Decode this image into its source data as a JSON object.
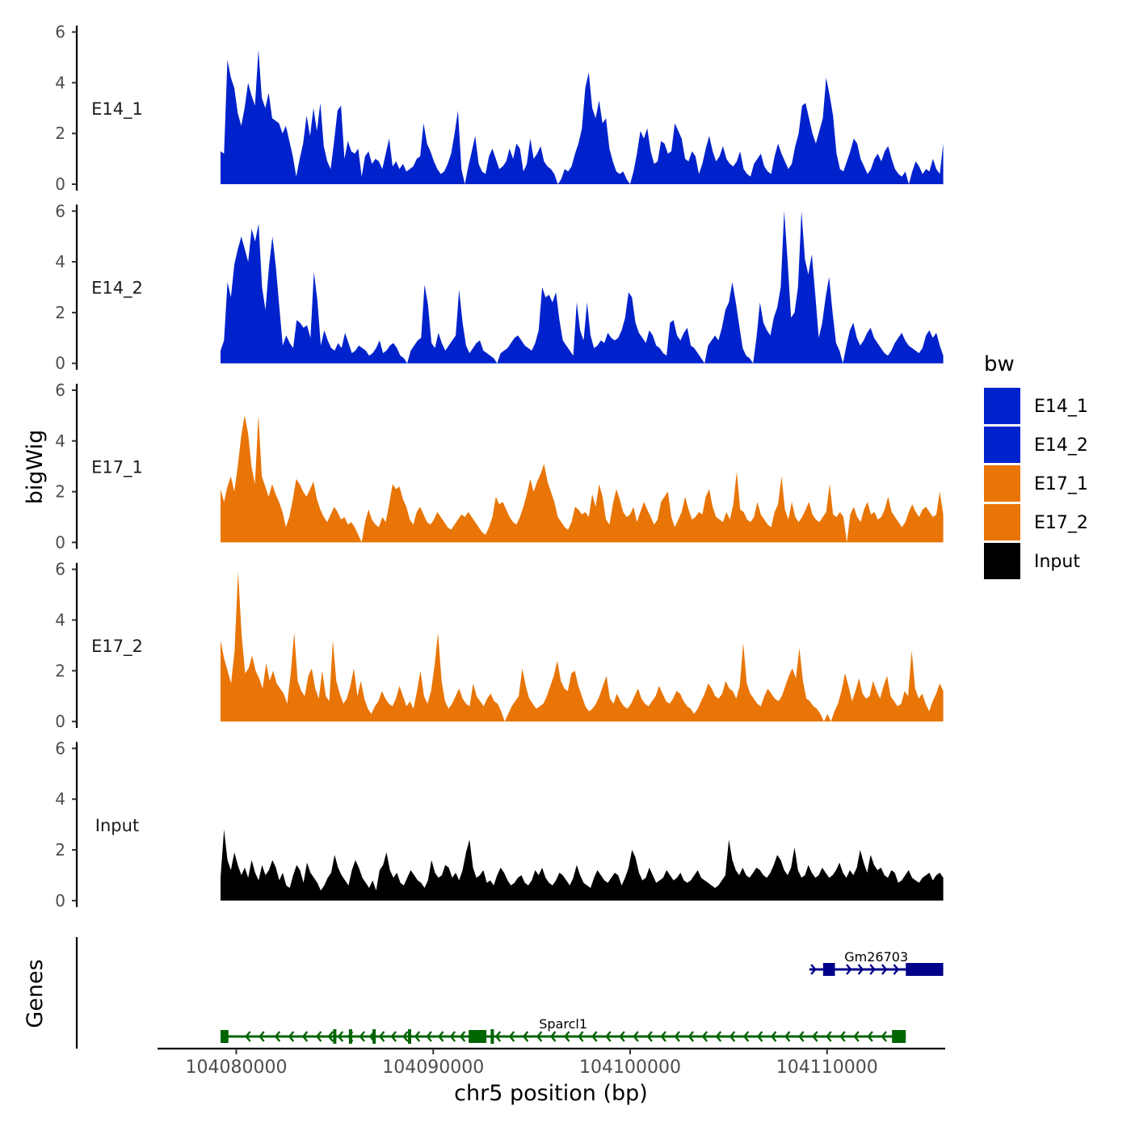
{
  "chart_data": {
    "type": "area",
    "chromosome": "chr5",
    "xlabel": "chr5 position (bp)",
    "ylabel": "bigWig",
    "genes_label": "Genes",
    "xlim": [
      104076000,
      104116000
    ],
    "x_ticks": [
      {
        "value": 104080000,
        "label": "104080000"
      },
      {
        "value": 104090000,
        "label": "104090000"
      },
      {
        "value": 104100000,
        "label": "104100000"
      },
      {
        "value": 104110000,
        "label": "104110000"
      }
    ],
    "ylim": [
      0,
      6
    ],
    "y_ticks": [
      {
        "value": 0,
        "label": "0"
      },
      {
        "value": 2,
        "label": "2"
      },
      {
        "value": 4,
        "label": "4"
      },
      {
        "value": 6,
        "label": "6"
      }
    ],
    "signal_range": [
      104079200,
      104115900
    ],
    "legend": {
      "title": "bw",
      "entries": [
        {
          "label": "E14_1",
          "color": "#0022CC"
        },
        {
          "label": "E14_2",
          "color": "#0022CC"
        },
        {
          "label": "E17_1",
          "color": "#E87506"
        },
        {
          "label": "E17_2",
          "color": "#E87506"
        },
        {
          "label": "Input",
          "color": "#000000"
        }
      ]
    },
    "series": [
      {
        "name": "E14_1",
        "color": "#0022CC",
        "values": [
          1.3,
          1.2,
          4.9,
          4.2,
          3.8,
          2.8,
          2.3,
          3.0,
          4.0,
          3.5,
          3.1,
          5.3,
          3.4,
          3.0,
          3.6,
          2.6,
          2.5,
          2.4,
          2.0,
          2.3,
          1.7,
          1.1,
          0.3,
          1.0,
          1.6,
          2.7,
          1.9,
          3.0,
          2.1,
          3.2,
          1.5,
          0.9,
          0.6,
          1.7,
          2.9,
          3.1,
          1.0,
          1.7,
          1.3,
          1.2,
          1.4,
          0.3,
          1.1,
          1.3,
          0.8,
          1.0,
          0.9,
          0.6,
          1.2,
          1.8,
          0.7,
          0.9,
          0.6,
          0.8,
          0.5,
          0.6,
          0.7,
          1.0,
          1.1,
          2.4,
          1.6,
          1.3,
          0.9,
          0.6,
          0.4,
          0.5,
          0.8,
          1.2,
          2.0,
          2.9,
          0.6,
          0.0,
          0.7,
          1.3,
          1.9,
          0.8,
          0.5,
          0.4,
          1.1,
          1.4,
          1.0,
          0.6,
          0.7,
          0.9,
          1.4,
          1.0,
          1.6,
          1.4,
          0.5,
          0.8,
          1.8,
          1.0,
          1.2,
          1.5,
          0.9,
          0.7,
          0.6,
          0.4,
          0.0,
          0.2,
          0.6,
          0.5,
          0.7,
          1.2,
          1.6,
          2.2,
          3.8,
          4.4,
          3.0,
          2.6,
          3.3,
          2.4,
          2.6,
          1.4,
          0.9,
          0.5,
          0.4,
          0.5,
          0.2,
          0.0,
          0.5,
          1.2,
          2.1,
          1.8,
          2.2,
          1.3,
          0.8,
          0.9,
          1.7,
          1.6,
          1.2,
          1.3,
          2.4,
          2.1,
          1.8,
          1.0,
          0.9,
          1.3,
          1.1,
          0.4,
          0.8,
          1.4,
          1.9,
          1.3,
          0.9,
          1.1,
          1.5,
          1.0,
          0.8,
          0.7,
          0.9,
          1.3,
          0.6,
          0.4,
          0.3,
          0.8,
          1.0,
          1.2,
          0.7,
          0.5,
          0.4,
          1.1,
          1.6,
          1.2,
          0.9,
          0.6,
          0.8,
          1.5,
          2.0,
          3.1,
          3.2,
          2.6,
          2.0,
          1.6,
          2.1,
          2.6,
          4.2,
          3.5,
          2.7,
          1.2,
          0.6,
          0.5,
          0.9,
          1.3,
          1.8,
          1.6,
          1.0,
          0.7,
          0.4,
          0.6,
          1.0,
          1.2,
          0.9,
          1.3,
          1.5,
          1.0,
          0.6,
          0.4,
          0.3,
          0.5,
          0.0,
          0.5,
          0.9,
          0.7,
          0.4,
          0.6,
          0.5,
          1.0,
          0.6,
          0.4,
          1.6
        ]
      },
      {
        "name": "E14_2",
        "color": "#0022CC",
        "values": [
          0.5,
          0.9,
          3.2,
          2.6,
          3.9,
          4.5,
          5.0,
          4.5,
          4.0,
          5.3,
          4.8,
          5.5,
          3.0,
          2.1,
          3.8,
          5.0,
          3.8,
          2.2,
          0.7,
          1.1,
          0.8,
          0.6,
          1.7,
          1.6,
          1.4,
          1.5,
          1.0,
          3.6,
          2.5,
          0.7,
          1.3,
          0.9,
          0.6,
          0.5,
          0.8,
          0.6,
          1.2,
          0.8,
          0.4,
          0.5,
          0.7,
          0.6,
          0.5,
          0.3,
          0.4,
          0.6,
          0.9,
          0.4,
          0.5,
          0.7,
          0.8,
          0.6,
          0.3,
          0.2,
          0.0,
          0.5,
          0.7,
          0.9,
          1.0,
          3.1,
          2.3,
          0.8,
          0.6,
          1.2,
          0.8,
          0.5,
          0.7,
          0.9,
          1.1,
          2.9,
          1.6,
          0.7,
          0.4,
          0.6,
          0.8,
          0.9,
          0.5,
          0.4,
          0.3,
          0.2,
          0.0,
          0.4,
          0.5,
          0.6,
          0.8,
          1.0,
          1.1,
          0.9,
          0.7,
          0.6,
          0.5,
          0.8,
          1.3,
          3.0,
          2.6,
          2.7,
          2.4,
          2.8,
          1.7,
          0.9,
          0.7,
          0.5,
          0.3,
          2.4,
          1.3,
          0.9,
          2.4,
          1.1,
          0.6,
          0.7,
          0.9,
          0.8,
          1.2,
          1.0,
          0.9,
          1.0,
          1.3,
          1.8,
          2.8,
          2.6,
          1.6,
          1.2,
          1.0,
          0.8,
          1.3,
          1.1,
          0.7,
          0.6,
          0.4,
          0.3,
          1.6,
          1.7,
          1.1,
          0.9,
          1.2,
          1.4,
          0.7,
          0.6,
          0.4,
          0.2,
          0.0,
          0.7,
          0.9,
          1.1,
          0.9,
          1.4,
          2.1,
          2.4,
          3.2,
          2.4,
          1.5,
          0.6,
          0.3,
          0.2,
          0.0,
          1.0,
          2.4,
          1.6,
          1.3,
          1.1,
          1.8,
          2.2,
          3.0,
          6.0,
          4.0,
          1.8,
          2.0,
          3.0,
          6.0,
          4.1,
          3.5,
          4.3,
          2.7,
          1.0,
          1.6,
          2.6,
          3.4,
          2.0,
          0.8,
          0.5,
          0.0,
          0.7,
          1.3,
          1.6,
          1.0,
          0.7,
          0.9,
          1.2,
          1.4,
          1.0,
          0.8,
          0.6,
          0.4,
          0.3,
          0.5,
          0.8,
          1.0,
          1.2,
          0.9,
          0.7,
          0.6,
          0.5,
          0.4,
          0.6,
          1.1,
          1.3,
          1.0,
          1.2,
          0.7,
          0.3
        ]
      },
      {
        "name": "E17_1",
        "color": "#E87506",
        "values": [
          2.1,
          1.6,
          2.2,
          2.6,
          2.0,
          3.0,
          4.2,
          5.0,
          4.3,
          3.0,
          2.3,
          5.0,
          2.6,
          2.2,
          1.8,
          2.3,
          1.9,
          1.6,
          1.2,
          0.6,
          1.0,
          1.7,
          2.5,
          2.3,
          2.0,
          1.8,
          2.1,
          2.4,
          1.7,
          1.3,
          1.0,
          0.8,
          1.1,
          1.4,
          1.2,
          0.9,
          1.0,
          0.7,
          0.8,
          0.6,
          0.3,
          0.0,
          0.8,
          1.3,
          0.9,
          0.7,
          0.6,
          1.0,
          0.8,
          1.5,
          2.3,
          2.1,
          2.2,
          1.7,
          1.4,
          0.9,
          0.7,
          1.2,
          1.4,
          1.1,
          0.8,
          0.7,
          0.9,
          1.2,
          1.0,
          0.8,
          0.6,
          0.5,
          0.7,
          0.9,
          1.1,
          1.0,
          1.2,
          1.0,
          0.8,
          0.6,
          0.4,
          0.3,
          0.6,
          1.0,
          1.8,
          1.5,
          1.6,
          1.3,
          1.0,
          0.8,
          0.7,
          1.0,
          1.4,
          1.9,
          2.5,
          2.0,
          2.4,
          2.7,
          3.1,
          2.4,
          2.0,
          1.6,
          1.0,
          0.8,
          0.6,
          0.5,
          0.8,
          1.4,
          1.3,
          1.1,
          1.2,
          1.0,
          1.9,
          1.4,
          2.3,
          1.8,
          0.9,
          0.7,
          1.5,
          2.1,
          1.7,
          1.2,
          1.0,
          1.1,
          1.4,
          0.8,
          1.2,
          1.6,
          1.3,
          1.0,
          0.7,
          0.9,
          1.6,
          1.8,
          2.0,
          1.0,
          0.6,
          0.9,
          1.2,
          1.8,
          1.3,
          0.9,
          1.0,
          1.2,
          1.1,
          1.8,
          2.1,
          1.4,
          1.0,
          0.9,
          0.8,
          1.2,
          0.9,
          1.5,
          2.8,
          1.3,
          1.2,
          0.9,
          0.8,
          1.0,
          1.6,
          1.1,
          0.9,
          0.7,
          0.6,
          1.2,
          1.5,
          2.6,
          1.3,
          0.9,
          1.6,
          1.0,
          0.8,
          1.0,
          1.3,
          1.6,
          1.1,
          0.9,
          0.8,
          1.0,
          1.2,
          2.3,
          1.1,
          1.0,
          1.2,
          1.0,
          0.0,
          1.1,
          1.4,
          1.0,
          0.8,
          1.3,
          1.6,
          1.1,
          1.2,
          0.9,
          1.0,
          1.3,
          1.8,
          1.2,
          1.0,
          0.8,
          0.6,
          0.8,
          1.2,
          1.5,
          1.2,
          1.0,
          1.3,
          1.4,
          1.2,
          1.0,
          1.1,
          2.0,
          1.1
        ]
      },
      {
        "name": "E17_2",
        "color": "#E87506",
        "values": [
          3.2,
          2.5,
          2.0,
          1.5,
          2.8,
          5.9,
          3.4,
          1.9,
          2.1,
          2.6,
          2.0,
          1.7,
          1.3,
          2.3,
          1.6,
          2.0,
          1.5,
          1.3,
          1.1,
          0.7,
          1.9,
          3.5,
          1.6,
          1.2,
          1.0,
          1.8,
          2.1,
          1.3,
          0.9,
          2.0,
          1.0,
          0.8,
          3.2,
          1.6,
          1.1,
          0.7,
          0.9,
          1.4,
          2.1,
          1.0,
          1.6,
          0.9,
          0.5,
          0.3,
          0.6,
          0.8,
          1.2,
          0.9,
          0.7,
          0.6,
          0.9,
          1.4,
          1.0,
          0.6,
          0.8,
          0.5,
          1.2,
          2.0,
          1.0,
          0.7,
          1.2,
          2.2,
          3.5,
          1.6,
          0.8,
          0.5,
          0.7,
          1.0,
          1.3,
          0.9,
          0.7,
          0.6,
          1.5,
          1.0,
          0.8,
          0.6,
          0.9,
          1.1,
          0.8,
          0.7,
          0.4,
          0.0,
          0.3,
          0.6,
          0.8,
          1.0,
          2.1,
          1.4,
          0.9,
          0.7,
          0.5,
          0.6,
          0.7,
          1.0,
          1.4,
          1.8,
          2.4,
          1.6,
          1.3,
          1.2,
          1.9,
          2.0,
          1.4,
          1.0,
          0.6,
          0.4,
          0.5,
          0.7,
          1.0,
          1.4,
          1.8,
          0.9,
          0.7,
          1.1,
          0.8,
          0.6,
          0.5,
          0.7,
          1.0,
          1.3,
          0.9,
          0.7,
          0.6,
          0.8,
          1.0,
          1.4,
          1.1,
          0.8,
          0.7,
          0.9,
          1.2,
          1.1,
          0.8,
          0.6,
          0.5,
          0.3,
          0.5,
          0.8,
          1.1,
          1.5,
          1.3,
          1.0,
          0.9,
          1.1,
          1.6,
          1.3,
          1.2,
          0.9,
          1.4,
          3.1,
          1.5,
          1.1,
          0.9,
          0.7,
          0.6,
          1.0,
          1.3,
          1.1,
          0.9,
          0.8,
          1.0,
          1.4,
          1.8,
          2.1,
          1.7,
          2.9,
          1.6,
          0.9,
          0.8,
          0.6,
          0.5,
          0.3,
          0.0,
          0.3,
          0.0,
          0.4,
          0.7,
          1.2,
          1.9,
          1.4,
          0.8,
          1.2,
          1.7,
          1.1,
          0.9,
          1.0,
          1.6,
          1.2,
          0.9,
          1.4,
          1.8,
          1.0,
          0.8,
          0.6,
          0.7,
          1.2,
          1.0,
          2.8,
          1.3,
          0.9,
          1.1,
          0.7,
          0.4,
          0.8,
          1.1,
          1.5,
          1.2
        ]
      },
      {
        "name": "Input",
        "color": "#000000",
        "values": [
          0.9,
          2.8,
          1.6,
          1.2,
          1.9,
          1.4,
          1.0,
          1.3,
          0.9,
          1.6,
          1.1,
          0.8,
          1.4,
          1.0,
          1.2,
          1.6,
          1.3,
          0.8,
          1.1,
          0.6,
          0.5,
          1.0,
          1.4,
          1.2,
          0.7,
          1.5,
          1.1,
          0.9,
          0.7,
          0.4,
          0.6,
          0.9,
          1.1,
          1.8,
          1.3,
          1.0,
          0.8,
          0.6,
          1.2,
          1.6,
          1.3,
          0.9,
          0.7,
          0.5,
          0.8,
          0.4,
          1.2,
          1.4,
          1.9,
          1.2,
          0.9,
          1.1,
          0.7,
          0.6,
          0.9,
          1.2,
          1.0,
          0.8,
          0.7,
          0.5,
          0.8,
          1.6,
          1.1,
          0.9,
          1.0,
          1.4,
          1.3,
          0.9,
          1.1,
          0.8,
          1.2,
          1.9,
          2.4,
          1.3,
          0.9,
          1.0,
          1.2,
          0.7,
          0.8,
          0.6,
          1.0,
          1.3,
          1.1,
          0.8,
          0.6,
          0.7,
          0.9,
          1.0,
          0.7,
          0.6,
          0.8,
          1.2,
          1.0,
          1.3,
          0.9,
          0.7,
          0.6,
          0.8,
          1.1,
          1.0,
          0.8,
          0.6,
          0.9,
          1.4,
          1.0,
          0.7,
          0.6,
          0.5,
          0.9,
          1.2,
          1.0,
          0.8,
          0.7,
          0.9,
          1.1,
          1.0,
          0.6,
          0.9,
          1.3,
          2.0,
          1.7,
          1.1,
          0.8,
          0.9,
          1.3,
          1.0,
          0.7,
          0.8,
          0.9,
          1.2,
          1.0,
          0.8,
          0.9,
          1.1,
          0.8,
          0.7,
          0.8,
          1.0,
          1.2,
          0.9,
          0.8,
          0.7,
          0.6,
          0.5,
          0.6,
          0.8,
          1.0,
          2.4,
          1.6,
          1.2,
          1.0,
          1.3,
          1.0,
          0.9,
          1.1,
          1.3,
          1.2,
          1.0,
          0.9,
          1.1,
          1.4,
          1.8,
          1.6,
          1.2,
          1.0,
          1.3,
          2.1,
          1.2,
          0.9,
          1.0,
          1.4,
          1.1,
          0.9,
          1.0,
          1.3,
          1.1,
          0.9,
          1.0,
          1.2,
          1.5,
          1.1,
          0.9,
          1.2,
          1.0,
          1.3,
          2.0,
          1.5,
          1.1,
          1.8,
          1.4,
          1.2,
          1.3,
          1.0,
          0.9,
          1.2,
          1.1,
          0.7,
          0.8,
          1.0,
          1.2,
          0.9,
          0.8,
          0.7,
          0.9,
          1.0,
          1.1,
          0.8,
          1.0,
          1.1,
          0.9
        ]
      }
    ],
    "genes": [
      {
        "name": "Gm26703",
        "strand": "+",
        "color": "#00008B",
        "start": 104109100,
        "end": 104115900,
        "exons": [
          [
            104109800,
            104110400
          ],
          [
            104114000,
            104115900
          ]
        ],
        "intron_marks": [
          104109400,
          104111200,
          104111800,
          104112400,
          104113000,
          104113600
        ]
      },
      {
        "name": "Sparcl1",
        "strand": "-",
        "color": "#006400",
        "start": 104079200,
        "end": 104114000,
        "exons": [
          [
            104079200,
            104079600
          ],
          [
            104091800,
            104092700
          ],
          [
            104113300,
            104114000
          ]
        ],
        "intron_marks": [
          104080500,
          104081200,
          104082000,
          104082700,
          104083400,
          104084100,
          104084700,
          104085200,
          104085700,
          104086300,
          104086800,
          104087300,
          104087900,
          104088500,
          104089100,
          104089700,
          104090300,
          104090900,
          104091400,
          104093200,
          104093900,
          104094600,
          104095300,
          104096000,
          104096700,
          104097400,
          104098100,
          104098800,
          104099500,
          104100200,
          104100900,
          104101600,
          104102300,
          104103000,
          104103700,
          104104400,
          104105100,
          104105800,
          104106500,
          104107200,
          104107900,
          104108600,
          104109300,
          104110000,
          104110700,
          104111400,
          104112100,
          104112800
        ],
        "exon_ticks": [
          104085000,
          104085800,
          104087000,
          104088800,
          104093000
        ]
      }
    ]
  }
}
